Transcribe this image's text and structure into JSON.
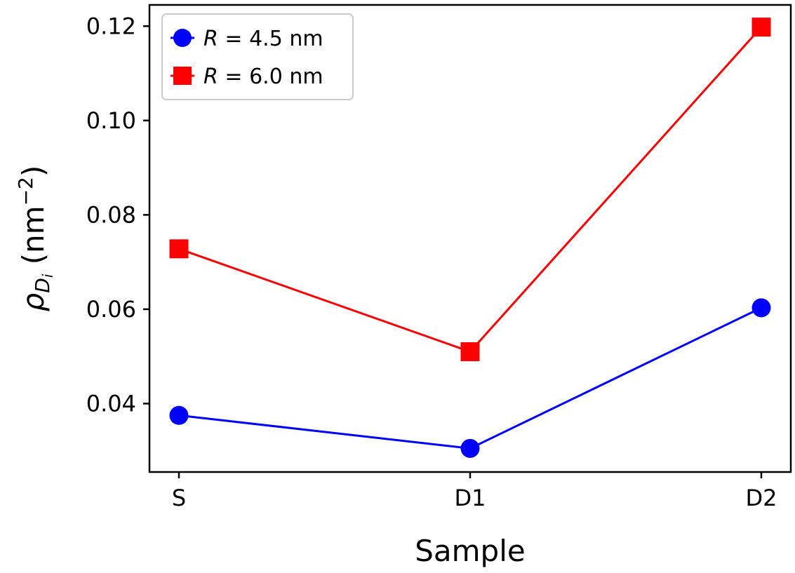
{
  "chart_data": {
    "type": "line",
    "title": "",
    "xlabel": "Sample",
    "ylabel": {
      "symbol": "ρ",
      "subscript": "D",
      "subsubscript": "i",
      "units_prefix": " (nm",
      "units_exponent": "−2",
      "units_suffix": ")"
    },
    "categories": [
      "S",
      "D1",
      "D2"
    ],
    "ylim": [
      0.0255,
      0.1245
    ],
    "yticks": [
      0.04,
      0.06,
      0.08,
      0.1,
      0.12
    ],
    "ytick_labels": [
      "0.04",
      "0.06",
      "0.08",
      "0.10",
      "0.12"
    ],
    "grid": false,
    "legend_position": "top-left",
    "series": [
      {
        "name": "R = 4.5 nm",
        "legend_var": "R",
        "legend_rest": " = 4.5 nm",
        "values": [
          0.0375,
          0.0305,
          0.0603
        ],
        "color": "#0000ff",
        "marker": "circle"
      },
      {
        "name": "R = 6.0 nm",
        "legend_var": "R",
        "legend_rest": " = 6.0 nm",
        "values": [
          0.0728,
          0.051,
          0.1198
        ],
        "color": "#ff0000",
        "marker": "square"
      }
    ]
  }
}
